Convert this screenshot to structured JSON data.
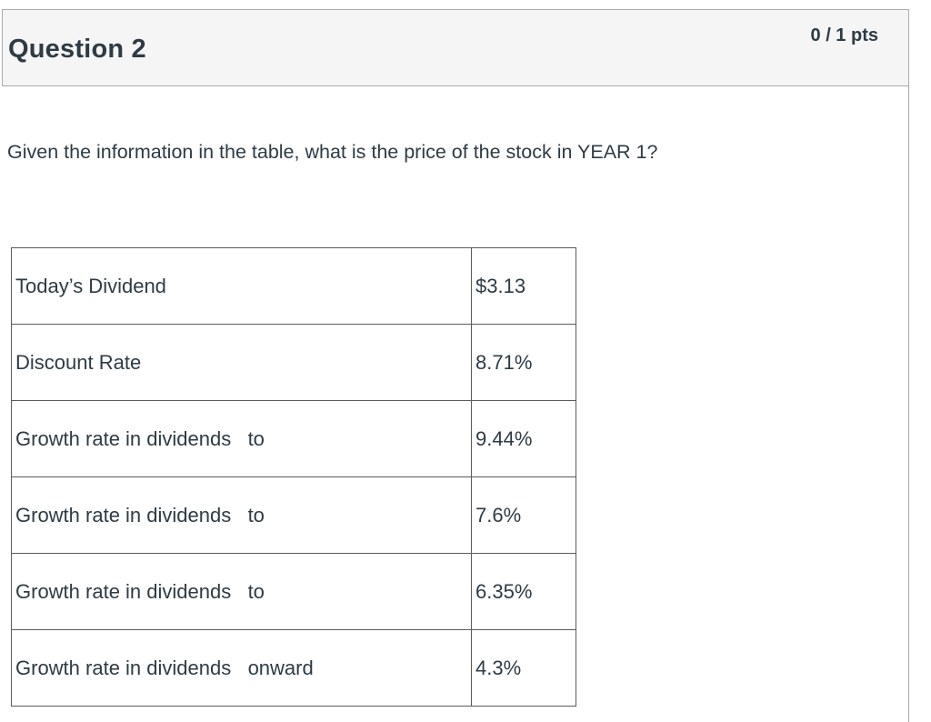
{
  "question_header": {
    "title": "Question 2",
    "points": "0 / 1 pts"
  },
  "question_body": {
    "prompt": "Given the information in the table, what is the price of the stock in YEAR 1?"
  },
  "table": {
    "rows": [
      {
        "label": "Today’s Dividend",
        "value": "$3.13"
      },
      {
        "label": "Discount Rate",
        "value": "8.71%"
      },
      {
        "label": "Growth rate in dividends   to",
        "value": "9.44%"
      },
      {
        "label": "Growth rate in dividends   to",
        "value": "7.6%"
      },
      {
        "label": "Growth rate in dividends   to",
        "value": "6.35%"
      },
      {
        "label": "Growth rate in dividends   onward",
        "value": "4.3%"
      }
    ]
  },
  "colors": {
    "header_background": "#f5f5f5",
    "header_border": "#ababab",
    "table_border": "#5b5b5b",
    "text": "#2d3b45"
  }
}
